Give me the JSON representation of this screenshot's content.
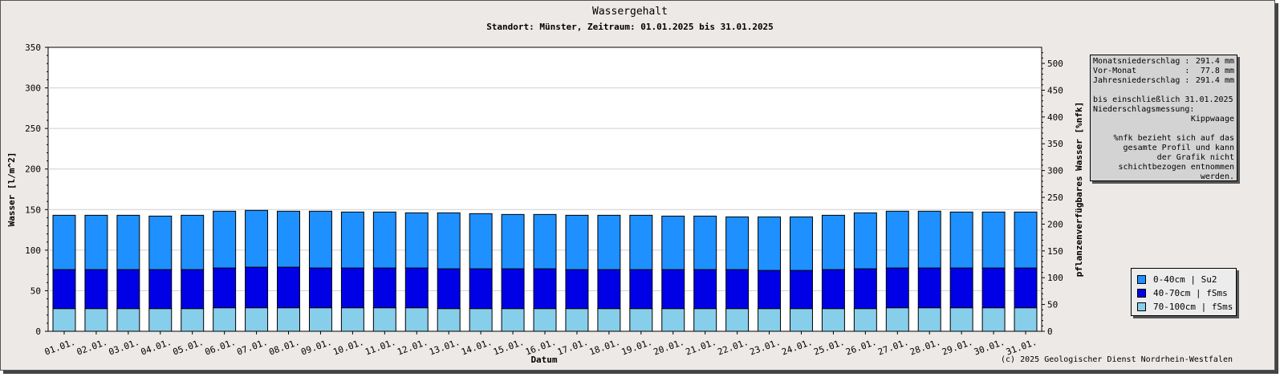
{
  "chart_data": {
    "type": "bar",
    "stacked": true,
    "title": "Wassergehalt",
    "subtitle": "Standort: Münster, Zeitraum: 01.01.2025 bis 31.01.2025",
    "xlabel": "Datum",
    "ylabel": "Wasser [l/m^2]",
    "y2label": "pflanzenverfügbares Wasser [%nfk]",
    "ylim": [
      0,
      350
    ],
    "y_ticks": [
      0,
      50,
      100,
      150,
      200,
      250,
      300,
      350
    ],
    "y2lim": [
      0,
      530
    ],
    "y2_ticks": [
      0,
      50,
      100,
      150,
      200,
      250,
      300,
      350,
      400,
      450,
      500
    ],
    "grid": true,
    "legend_position": "bottom-right",
    "categories": [
      "01.01.",
      "02.01.",
      "03.01.",
      "04.01.",
      "05.01.",
      "06.01.",
      "07.01.",
      "08.01.",
      "09.01.",
      "10.01.",
      "11.01.",
      "12.01.",
      "13.01.",
      "14.01.",
      "15.01.",
      "16.01.",
      "17.01.",
      "18.01.",
      "19.01.",
      "20.01.",
      "21.01.",
      "22.01.",
      "23.01.",
      "24.01.",
      "25.01.",
      "26.01.",
      "27.01.",
      "28.01.",
      "29.01.",
      "30.01.",
      "31.01."
    ],
    "series": [
      {
        "name": "70-100cm | fSms",
        "color": "#87ceeb",
        "values": [
          28,
          28,
          28,
          28,
          28,
          29,
          29,
          29,
          29,
          29,
          29,
          29,
          28,
          28,
          28,
          28,
          28,
          28,
          28,
          28,
          28,
          28,
          28,
          28,
          28,
          28,
          29,
          29,
          29,
          29,
          29
        ]
      },
      {
        "name": "40-70cm | fSms",
        "color": "#0000e6",
        "values": [
          48,
          48,
          48,
          48,
          48,
          49,
          50,
          50,
          49,
          49,
          49,
          49,
          49,
          49,
          49,
          49,
          48,
          48,
          48,
          48,
          48,
          48,
          47,
          47,
          48,
          49,
          49,
          49,
          49,
          49,
          49
        ]
      },
      {
        "name": "0-40cm | Su2",
        "color": "#1e90ff",
        "values": [
          67,
          67,
          67,
          66,
          67,
          70,
          70,
          69,
          70,
          69,
          69,
          68,
          69,
          68,
          67,
          67,
          67,
          67,
          67,
          66,
          66,
          65,
          66,
          66,
          67,
          69,
          70,
          70,
          69,
          69,
          69
        ]
      }
    ]
  },
  "info": {
    "monatsniederschlag_label": "Monatsniederschlag :",
    "monatsniederschlag_value": "291.4 mm",
    "vormonat_label": "Vor-Monat          :",
    "vormonat_value": "77.8 mm",
    "jahresniederschlag_label": "Jahresniederschlag :",
    "jahresniederschlag_value": "291.4 mm",
    "bis_text": "bis einschließlich 31.01.2025",
    "messung_label": "Niederschlagsmessung:",
    "messung_value": "Kippwaage",
    "note": "%nfk bezieht sich auf das gesamte Profil und kann der Grafik nicht schichtbezogen entnommen werden."
  },
  "copyright": "(c) 2025 Geologischer Dienst Nordrhein-Westfalen"
}
